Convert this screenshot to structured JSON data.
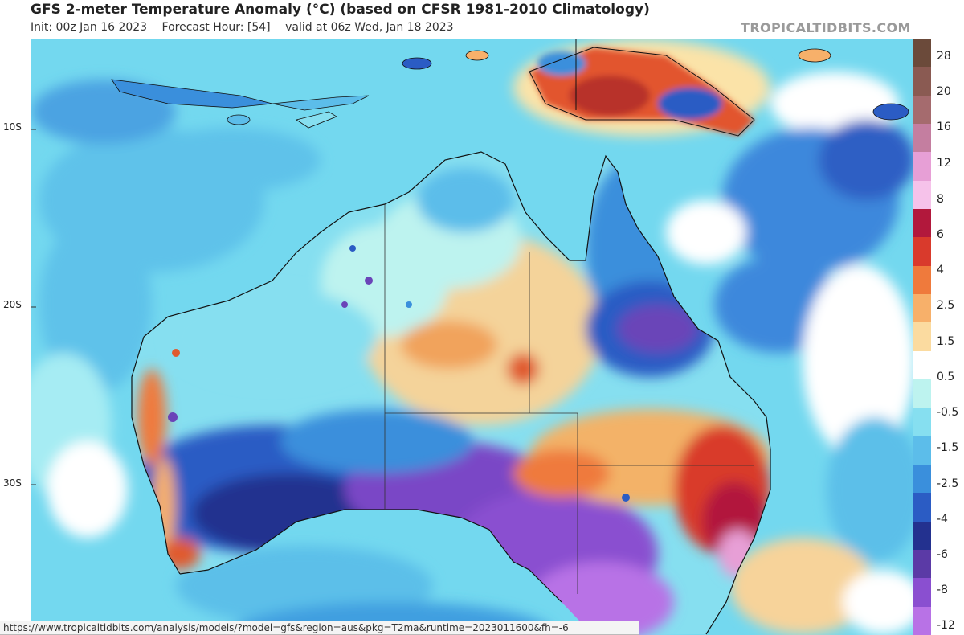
{
  "header": {
    "title": "GFS 2-meter Temperature Anomaly (°C) (based on CFSR 1981-2010 Climatology)",
    "init": "Init: 00z Jan 16 2023",
    "forecast_hour": "Forecast Hour: [54]",
    "valid": "valid at 06z Wed, Jan 18 2023",
    "brand": "TROPICALTIDBITS.COM"
  },
  "map": {
    "latitude_labels": [
      "10S",
      "20S",
      "30S"
    ],
    "colors": {
      "ocean_base": "#72d8ee",
      "land_outline": "#111111"
    }
  },
  "colorbar": {
    "labels": [
      "28",
      "20",
      "16",
      "12",
      "8",
      "6",
      "4",
      "2.5",
      "1.5",
      "0.5",
      "-0.5",
      "-1.5",
      "-2.5",
      "-4",
      "-6",
      "-8",
      "-12"
    ],
    "colors": [
      "#6b4a3a",
      "#8a5a52",
      "#a56b6e",
      "#c47ea0",
      "#e79fd6",
      "#f6c2ea",
      "#b2183c",
      "#d93a2c",
      "#ef7a3c",
      "#f7b06a",
      "#fbdba0",
      "#ffffff",
      "#bdf3ef",
      "#86dff0",
      "#5cbdea",
      "#3a8fdc",
      "#2b5cc4",
      "#23318f",
      "#5b3aa6",
      "#8a4fd0",
      "#b872e6"
    ]
  },
  "url_bar": {
    "text": "https://www.tropicaltidbits.com/analysis/models/?model=gfs&region=aus&pkg=T2ma&runtime=2023011600&fh=-6"
  }
}
